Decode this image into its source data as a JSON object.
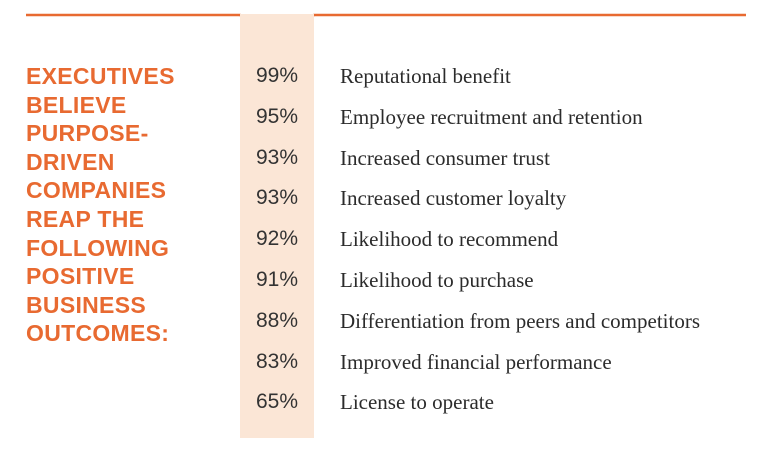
{
  "heading": [
    "EXECUTIVES",
    "BELIEVE",
    "PURPOSE-",
    "DRIVEN",
    "COMPANIES",
    "REAP THE",
    "FOLLOWING",
    "POSITIVE",
    "BUSINESS",
    "OUTCOMES:"
  ],
  "colors": {
    "accent": "#e86a31",
    "band": "#fbe6d6",
    "text": "#2b2b2b"
  },
  "chart_data": {
    "type": "table",
    "categories": [
      "Reputational benefit",
      "Employee recruitment and retention",
      "Increased consumer trust",
      "Increased customer loyalty",
      "Likelihood to recommend",
      "Likelihood to purchase",
      "Differentiation from peers and competitors",
      "Improved financial performance",
      "License to operate"
    ],
    "values": [
      99,
      95,
      93,
      93,
      92,
      91,
      88,
      83,
      65
    ],
    "value_labels": [
      "99%",
      "95%",
      "93%",
      "93%",
      "92%",
      "91%",
      "88%",
      "83%",
      "65%"
    ]
  }
}
